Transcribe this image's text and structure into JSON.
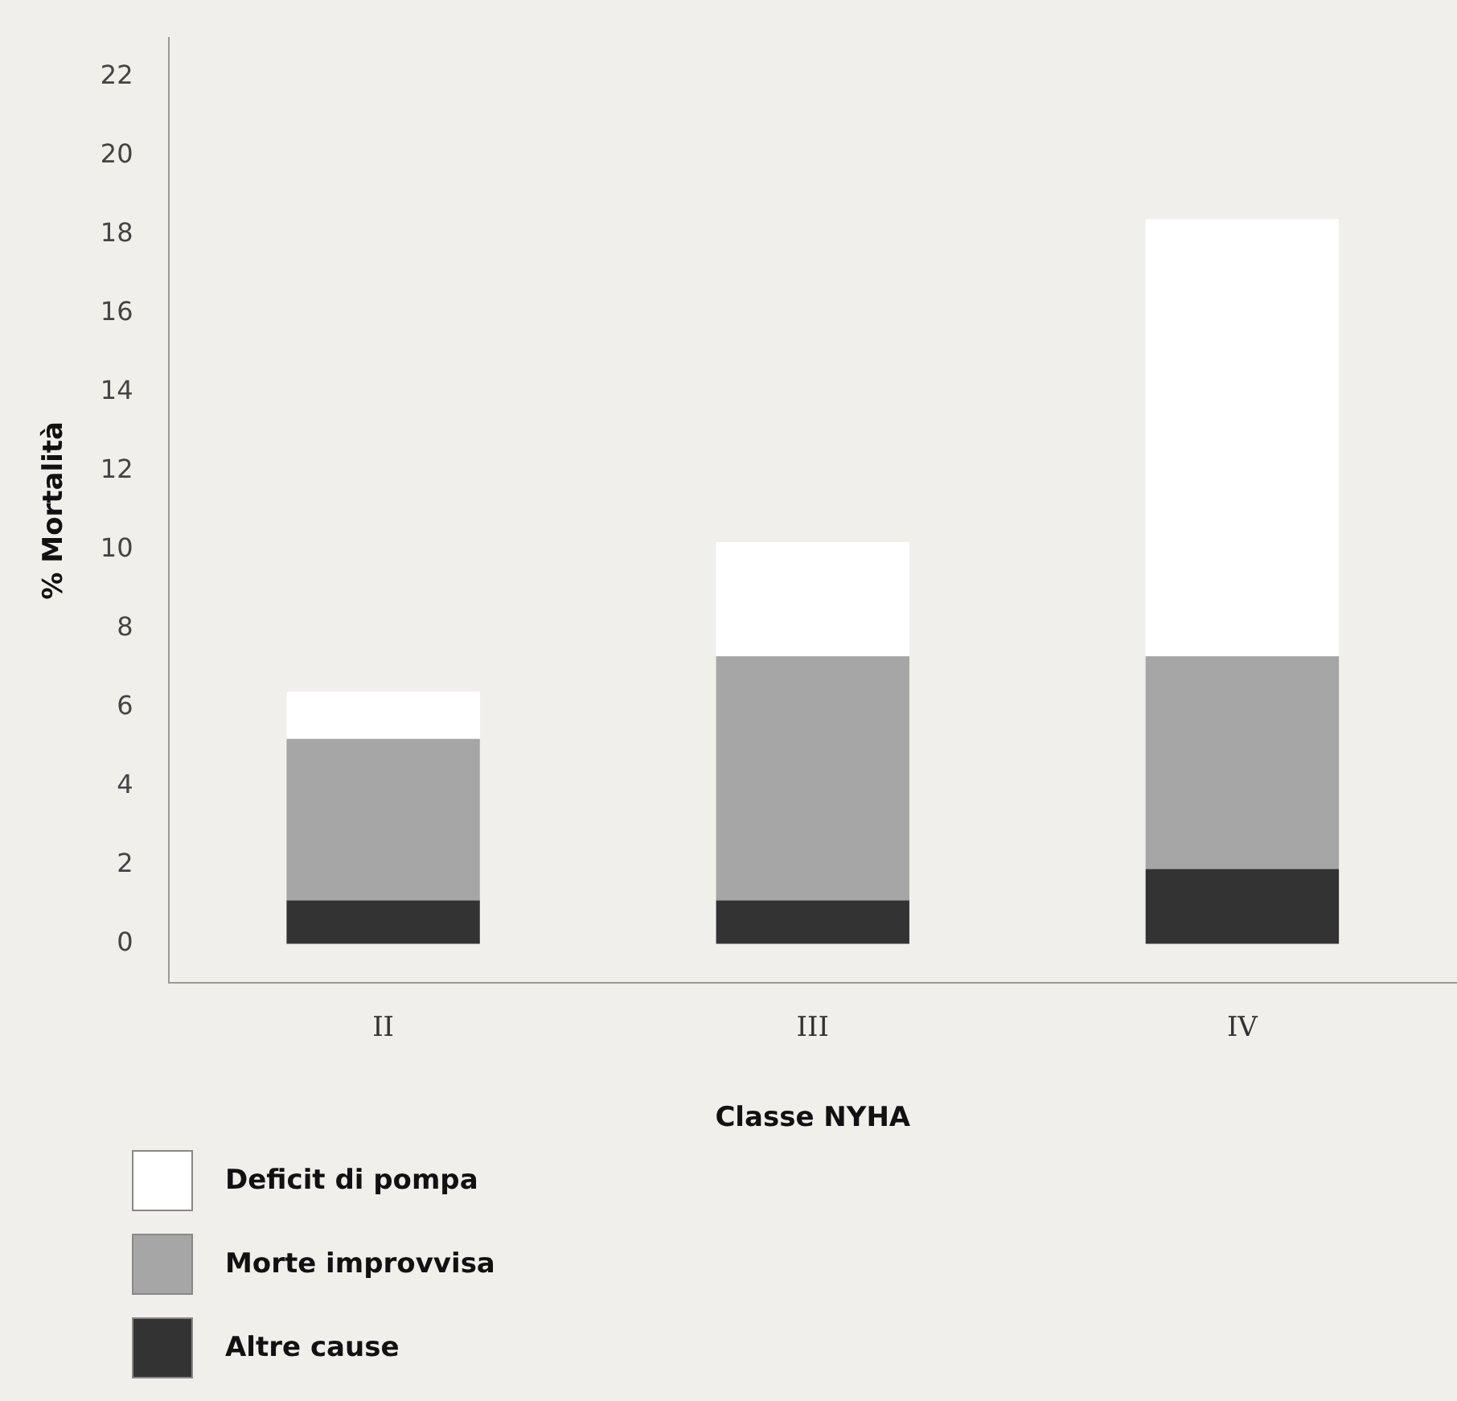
{
  "chart_data": {
    "type": "bar",
    "xlabel": "Classe NYHA",
    "ylabel": "% Mortalità",
    "categories": [
      "II",
      "III",
      "IV"
    ],
    "stacked": true,
    "series": [
      {
        "name": "Altre cause",
        "color": "#333333",
        "values": [
          1.1,
          1.1,
          1.9
        ]
      },
      {
        "name": "Morte improvvisa",
        "color": "#a6a6a6",
        "values": [
          4.1,
          6.2,
          5.4
        ]
      },
      {
        "name": "Deficit di pompa",
        "color": "#ffffff",
        "values": [
          1.2,
          2.9,
          11.1
        ]
      }
    ],
    "ylim": [
      -1,
      23
    ],
    "yticks": [
      0,
      2,
      4,
      6,
      8,
      10,
      12,
      14,
      16,
      18,
      20,
      22
    ],
    "grid": false,
    "legend": "bottom left"
  }
}
